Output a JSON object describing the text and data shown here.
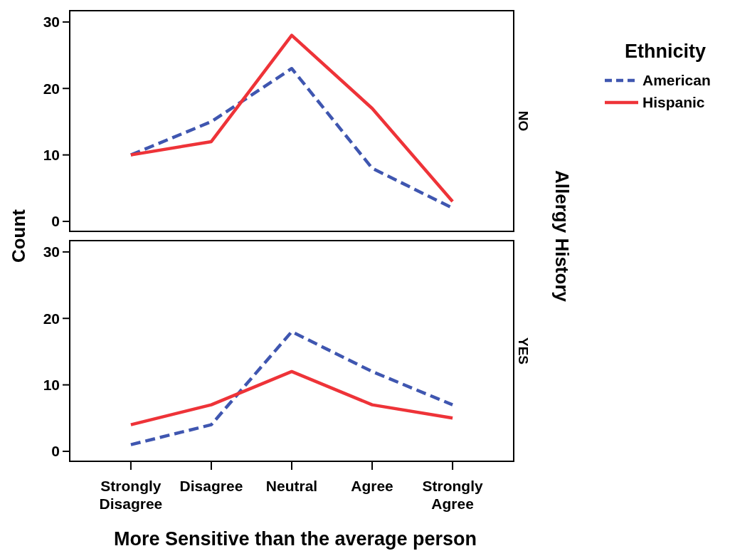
{
  "chart_data": [
    {
      "type": "line",
      "subtitle": "NO",
      "ylabel": "Count",
      "y2label": "Allergy History",
      "legend_title": "Ethnicity",
      "legend": "right",
      "categories": [
        null,
        null,
        null,
        null,
        null
      ],
      "series": [
        {
          "name": "American",
          "color": "#3f56b0",
          "line_style": "dashed",
          "values": [
            10,
            15,
            23,
            8,
            2
          ]
        },
        {
          "name": "Hispanic",
          "color": "#ee3338",
          "line_style": "solid",
          "values": [
            10,
            12,
            28,
            17,
            3
          ]
        }
      ],
      "ylim": [
        -1.5,
        31.7
      ],
      "yticks": [
        0,
        10,
        20,
        30
      ],
      "grid": false,
      "marker": "none",
      "tick_labels": "y"
    },
    {
      "type": "line",
      "subtitle": "YES",
      "xlabel": "More Sensitive than the average person",
      "categories": [
        "Strongly Disagree",
        "Disagree",
        "Neutral",
        "Agree",
        "Strongly Agree"
      ],
      "series": [
        {
          "color": "#3f56b0",
          "line_style": "dashed",
          "values": [
            1,
            4,
            18,
            12,
            7
          ]
        },
        {
          "color": "#ee3338",
          "line_style": "solid",
          "values": [
            4,
            7,
            12,
            7,
            5
          ]
        }
      ],
      "ylim": [
        -1.5,
        31.7
      ],
      "yticks": [
        0,
        10,
        20,
        30
      ],
      "grid": false,
      "marker": "none"
    }
  ]
}
